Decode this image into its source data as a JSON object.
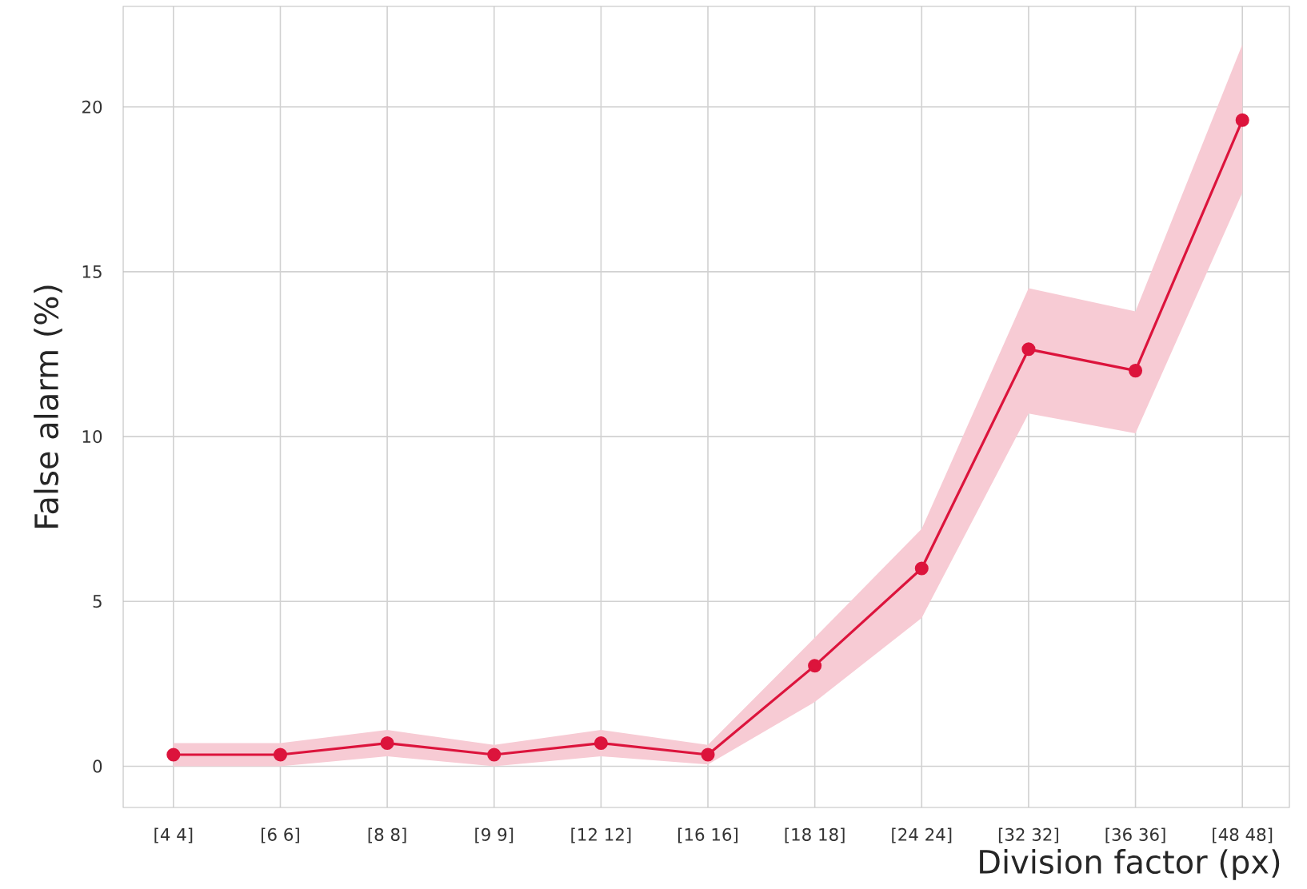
{
  "chart_data": {
    "type": "line",
    "xlabel": "Division factor (px)",
    "ylabel": "False alarm (%)",
    "categories": [
      "[4 4]",
      "[6 6]",
      "[8 8]",
      "[9 9]",
      "[12 12]",
      "[16 16]",
      "[18 18]",
      "[24 24]",
      "[32 32]",
      "[36 36]",
      "[48 48]"
    ],
    "series": [
      {
        "color": "#dc143c",
        "values": [
          0.35,
          0.35,
          0.7,
          0.35,
          0.7,
          0.35,
          3.05,
          6.0,
          12.65,
          12.0,
          19.6
        ],
        "lower": [
          0.0,
          0.0,
          0.3,
          0.0,
          0.3,
          0.05,
          1.95,
          4.5,
          10.7,
          10.1,
          17.4
        ],
        "upper": [
          0.7,
          0.7,
          1.1,
          0.65,
          1.1,
          0.65,
          3.9,
          7.2,
          14.5,
          13.8,
          21.9
        ]
      }
    ],
    "ylim": [
      -1.25,
      23.05
    ],
    "yticks": [
      0,
      5,
      10,
      15,
      20
    ],
    "grid": true,
    "marker": "circle",
    "line_style": "solid"
  }
}
